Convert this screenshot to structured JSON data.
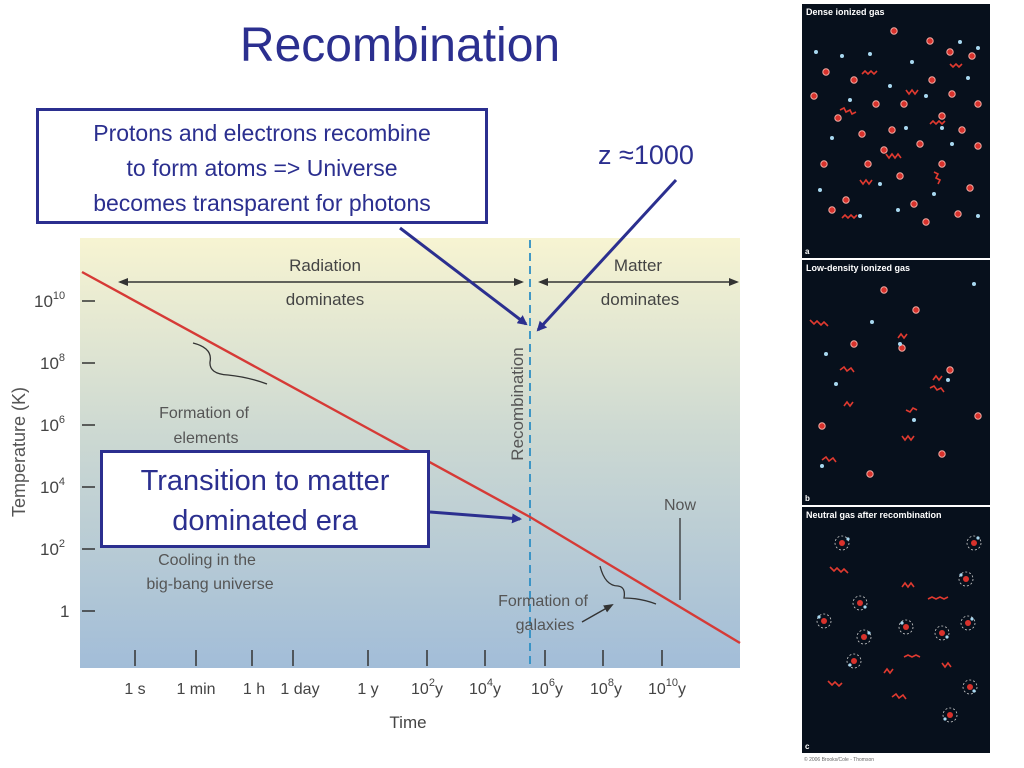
{
  "title": "Recombination",
  "callouts": {
    "top": [
      "Protons and electrons recombine",
      "to form atoms => Universe",
      "becomes transparent for photons"
    ],
    "transition": [
      "Transition to matter",
      "dominated era"
    ],
    "z": "z ≈1000"
  },
  "chart_data": {
    "type": "line",
    "title": "",
    "xlabel": "Time",
    "ylabel": "Temperature (K)",
    "x_ticks": [
      "1 s",
      "1 min",
      "1 h",
      "1 day",
      "1 y",
      "10^2y",
      "10^4y",
      "10^6y",
      "10^8y",
      "10^10y"
    ],
    "y_ticks": [
      "10^10",
      "10^8",
      "10^6",
      "10^4",
      "10^2",
      "1"
    ],
    "series": [
      {
        "line": "temperature",
        "color": "#d63a36"
      }
    ],
    "regions": [
      {
        "top": "Radiation",
        "bottom": "dominates"
      },
      {
        "top": "Matter",
        "bottom": "dominates"
      }
    ],
    "marker": "Recombination",
    "annotations": {
      "elements": [
        "Formation of",
        "elements"
      ],
      "cooling": [
        "Cooling in the",
        "big-bang universe"
      ],
      "now": "Now",
      "galaxies": [
        "Formation of",
        "galaxies"
      ]
    }
  },
  "panels": [
    {
      "label": "Dense ionized gas",
      "letter": "a"
    },
    {
      "label": "Low-density ionized gas",
      "letter": "b"
    },
    {
      "label": "Neutral gas after recombination",
      "letter": "c"
    }
  ],
  "copyright": "© 2006 Brooks/Cole - Thomson",
  "colors": {
    "accent": "#2b2f8f",
    "line": "#d63a36",
    "marker": "#2f8fc4",
    "panel": "#07101c"
  }
}
